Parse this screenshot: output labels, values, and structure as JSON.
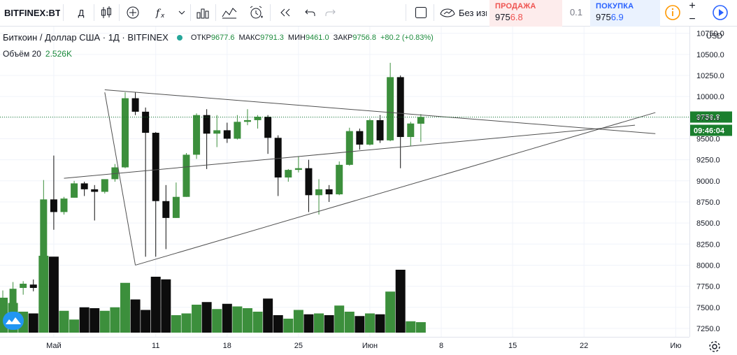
{
  "toolbar": {
    "symbol": "BITFINEX:BTCUSD",
    "interval": "Д",
    "compare_text": "Без изменений",
    "sell": {
      "label": "ПРОДАЖА",
      "price_prefix": "975",
      "price_hl": "6.8"
    },
    "spread": "0.1",
    "buy": {
      "label": "ПОКУПКА",
      "price_prefix": "975",
      "price_hl": "6.9"
    },
    "plus": "+",
    "minus": "−",
    "icons": [
      "candles-icon",
      "add-indicator-icon",
      "fx-icon",
      "chevron-down-icon",
      "bar-chart-icon",
      "chart-template-icon",
      "alarm-add-icon",
      "replay-icon",
      "undo-icon",
      "redo-icon",
      "layout-icon",
      "info-icon",
      "play-icon"
    ]
  },
  "legend": {
    "title": "Биткоин / Доллар США · 1Д · BITFINEX",
    "open_label": "ОТКР",
    "open": "9677.6",
    "high_label": "МАКС",
    "high": "9791.3",
    "low_label": "МИН",
    "low": "9461.0",
    "close_label": "ЗАКР",
    "close": "9756.8",
    "change": "+80.2 (+0.83%)",
    "volume_label": "Объём 20",
    "volume": "2.526K"
  },
  "colors": {
    "up": "#3c8f3c",
    "down": "#0d0d0d",
    "vol_up": "#3c8f3c",
    "vol_down": "#0d0d0d",
    "last_price": "#1b7f2e",
    "trendline": "#505050"
  },
  "chart_data": {
    "type": "candlestick",
    "title": "Биткоин / Доллар США · 1Д · BITFINEX",
    "ylim": [
      7150,
      10830
    ],
    "y_ticks": [
      7250,
      7500,
      7750,
      8000,
      8250,
      8500,
      8750,
      9000,
      9250,
      9500,
      9750,
      10000,
      10250,
      10500,
      10750
    ],
    "y_tick_labels": [
      "7250.0",
      "7500.0",
      "7750.0",
      "8000.0",
      "8250.0",
      "8500.0",
      "8750.0",
      "9000.0",
      "9250.0",
      "9500.0",
      "9750.0",
      "10000.0",
      "10250.0",
      "10500.0",
      "10750.0"
    ],
    "y_unit": "USD",
    "last_price": "9756.8",
    "countdown": "09:46:04",
    "x_labels": [
      "Май",
      "11",
      "18",
      "25",
      "Июн",
      "8",
      "15",
      "22",
      "Ию"
    ],
    "x_label_dates": [
      "2020-05-01",
      "2020-05-11",
      "2020-05-18",
      "2020-05-25",
      "2020-06-01",
      "2020-06-08",
      "2020-06-15",
      "2020-06-22",
      "2020-07-01"
    ],
    "x_range": [
      "2020-04-26",
      "2020-07-02"
    ],
    "series": [
      {
        "date": "2020-04-26",
        "o": 7510,
        "h": 7700,
        "l": 7400,
        "c": 7520,
        "v": 4.0
      },
      {
        "date": "2020-04-27",
        "o": 7520,
        "h": 7800,
        "l": 7450,
        "c": 7720,
        "v": 3.4
      },
      {
        "date": "2020-04-28",
        "o": 7730,
        "h": 7810,
        "l": 7650,
        "c": 7780,
        "v": 2.4
      },
      {
        "date": "2020-04-29",
        "o": 7770,
        "h": 7830,
        "l": 7690,
        "c": 7730,
        "v": 2.2
      },
      {
        "date": "2020-04-30",
        "o": 7750,
        "h": 9010,
        "l": 7740,
        "c": 8780,
        "v": 8.8
      },
      {
        "date": "2020-05-01",
        "o": 8780,
        "h": 9300,
        "l": 8420,
        "c": 8630,
        "v": 8.7
      },
      {
        "date": "2020-05-02",
        "o": 8630,
        "h": 8810,
        "l": 8600,
        "c": 8790,
        "v": 2.5
      },
      {
        "date": "2020-05-03",
        "o": 8800,
        "h": 9000,
        "l": 8800,
        "c": 8970,
        "v": 1.5
      },
      {
        "date": "2020-05-04",
        "o": 8970,
        "h": 8990,
        "l": 8820,
        "c": 8900,
        "v": 2.9
      },
      {
        "date": "2020-05-05",
        "o": 8900,
        "h": 8950,
        "l": 8530,
        "c": 8870,
        "v": 2.8
      },
      {
        "date": "2020-05-06",
        "o": 8870,
        "h": 9010,
        "l": 8850,
        "c": 9020,
        "v": 2.5
      },
      {
        "date": "2020-05-07",
        "o": 9020,
        "h": 9200,
        "l": 8990,
        "c": 9160,
        "v": 2.9
      },
      {
        "date": "2020-05-08",
        "o": 9160,
        "h": 10050,
        "l": 9150,
        "c": 9980,
        "v": 5.7
      },
      {
        "date": "2020-05-09",
        "o": 9980,
        "h": 10050,
        "l": 9780,
        "c": 9820,
        "v": 3.8
      },
      {
        "date": "2020-05-10",
        "o": 9820,
        "h": 9870,
        "l": 8100,
        "c": 9570,
        "v": 2.6
      },
      {
        "date": "2020-05-11",
        "o": 9570,
        "h": 9580,
        "l": 8100,
        "c": 8760,
        "v": 6.4
      },
      {
        "date": "2020-05-12",
        "o": 8760,
        "h": 8950,
        "l": 8190,
        "c": 8560,
        "v": 6.1
      },
      {
        "date": "2020-05-13",
        "o": 8560,
        "h": 8980,
        "l": 8560,
        "c": 8810,
        "v": 2.0
      },
      {
        "date": "2020-05-14",
        "o": 8810,
        "h": 9330,
        "l": 8810,
        "c": 9310,
        "v": 2.2
      },
      {
        "date": "2020-05-15",
        "o": 9310,
        "h": 9800,
        "l": 9260,
        "c": 9780,
        "v": 3.2
      },
      {
        "date": "2020-05-16",
        "o": 9780,
        "h": 9850,
        "l": 9140,
        "c": 9560,
        "v": 3.5
      },
      {
        "date": "2020-05-17",
        "o": 9560,
        "h": 9780,
        "l": 9400,
        "c": 9600,
        "v": 2.7
      },
      {
        "date": "2020-05-18",
        "o": 9600,
        "h": 9690,
        "l": 9450,
        "c": 9500,
        "v": 3.3
      },
      {
        "date": "2020-05-19",
        "o": 9500,
        "h": 9780,
        "l": 9490,
        "c": 9700,
        "v": 3.0
      },
      {
        "date": "2020-05-20",
        "o": 9700,
        "h": 9850,
        "l": 9660,
        "c": 9720,
        "v": 2.8
      },
      {
        "date": "2020-05-21",
        "o": 9720,
        "h": 9780,
        "l": 9620,
        "c": 9760,
        "v": 2.4
      },
      {
        "date": "2020-05-22",
        "o": 9760,
        "h": 9780,
        "l": 9320,
        "c": 9510,
        "v": 3.9
      },
      {
        "date": "2020-05-23",
        "o": 9510,
        "h": 9540,
        "l": 8820,
        "c": 9040,
        "v": 2.0
      },
      {
        "date": "2020-05-24",
        "o": 9040,
        "h": 9140,
        "l": 8990,
        "c": 9130,
        "v": 1.6
      },
      {
        "date": "2020-05-25",
        "o": 9130,
        "h": 9290,
        "l": 9100,
        "c": 9150,
        "v": 2.6
      },
      {
        "date": "2020-05-26",
        "o": 9150,
        "h": 9250,
        "l": 8630,
        "c": 8830,
        "v": 2.1
      },
      {
        "date": "2020-05-27",
        "o": 8830,
        "h": 9020,
        "l": 8600,
        "c": 8900,
        "v": 2.2
      },
      {
        "date": "2020-05-28",
        "o": 8900,
        "h": 8950,
        "l": 8750,
        "c": 8840,
        "v": 2.0
      },
      {
        "date": "2020-05-29",
        "o": 8840,
        "h": 9230,
        "l": 8830,
        "c": 9190,
        "v": 3.1
      },
      {
        "date": "2020-05-30",
        "o": 9190,
        "h": 9630,
        "l": 9180,
        "c": 9590,
        "v": 2.4
      },
      {
        "date": "2020-05-31",
        "o": 9590,
        "h": 9620,
        "l": 9370,
        "c": 9430,
        "v": 1.9
      },
      {
        "date": "2020-06-01",
        "o": 9430,
        "h": 9740,
        "l": 9420,
        "c": 9720,
        "v": 2.2
      },
      {
        "date": "2020-06-02",
        "o": 9720,
        "h": 9780,
        "l": 9450,
        "c": 9480,
        "v": 2.1
      },
      {
        "date": "2020-06-03",
        "o": 9480,
        "h": 10400,
        "l": 9470,
        "c": 10230,
        "v": 4.7
      },
      {
        "date": "2020-06-04",
        "o": 10230,
        "h": 10250,
        "l": 9150,
        "c": 9520,
        "v": 7.2
      },
      {
        "date": "2020-06-05",
        "o": 9520,
        "h": 9700,
        "l": 9410,
        "c": 9680,
        "v": 1.3
      },
      {
        "date": "2020-06-06",
        "o": 9677.6,
        "h": 9791.3,
        "l": 9461.0,
        "c": 9756.8,
        "v": 1.2
      }
    ],
    "trendlines": [
      {
        "from": {
          "date": "2020-05-06",
          "price": 10080
        },
        "to": {
          "date": "2020-06-29",
          "price": 9560
        }
      },
      {
        "from": {
          "date": "2020-05-02",
          "price": 9030
        },
        "to": {
          "date": "2020-06-27",
          "price": 9660
        }
      },
      {
        "from": {
          "date": "2020-05-09",
          "price": 8000
        },
        "to": {
          "date": "2020-06-29",
          "price": 9810
        }
      },
      {
        "from": {
          "date": "2020-05-06",
          "price": 10050
        },
        "to": {
          "date": "2020-05-09",
          "price": 8000
        }
      }
    ]
  }
}
